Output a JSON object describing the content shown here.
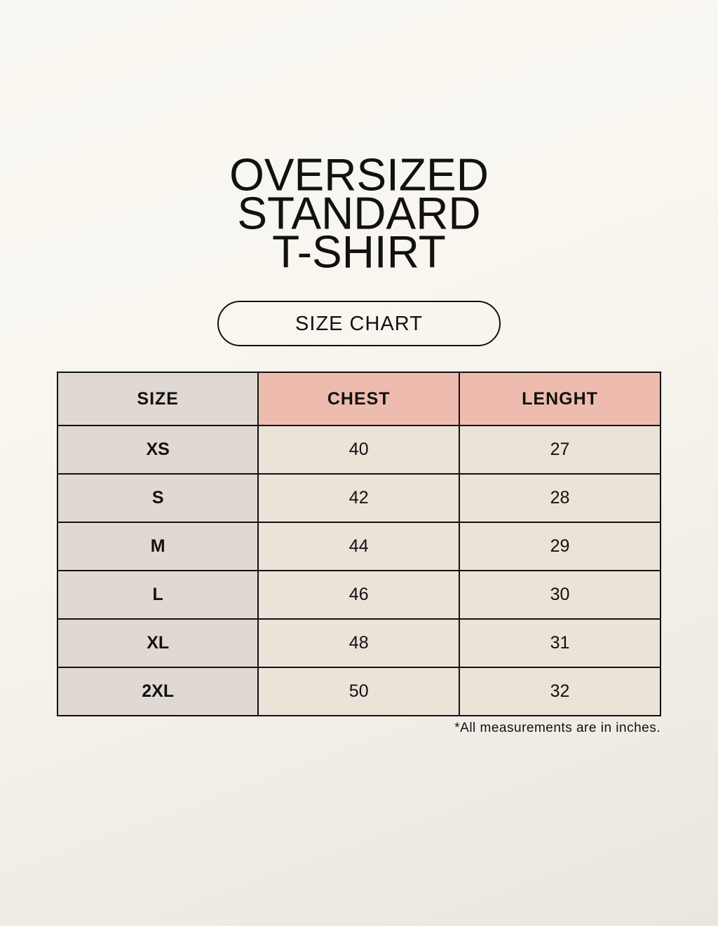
{
  "title_lines": [
    "OVERSIZED",
    "STANDARD",
    "T-SHIRT"
  ],
  "badge": "SIZE CHART",
  "table": {
    "headers": [
      "SIZE",
      "CHEST",
      "LENGHT"
    ],
    "rows": [
      [
        "XS",
        "40",
        "27"
      ],
      [
        "S",
        "42",
        "28"
      ],
      [
        "M",
        "44",
        "29"
      ],
      [
        "L",
        "46",
        "30"
      ],
      [
        "XL",
        "48",
        "31"
      ],
      [
        "2XL",
        "50",
        "32"
      ]
    ]
  },
  "note": "*All measurements are in inches.",
  "colors": {
    "size_column": "#e0d8d2",
    "header_accent": "#eebcae",
    "body_cells": "#ebe2d8",
    "background": "#f8f6f0"
  }
}
